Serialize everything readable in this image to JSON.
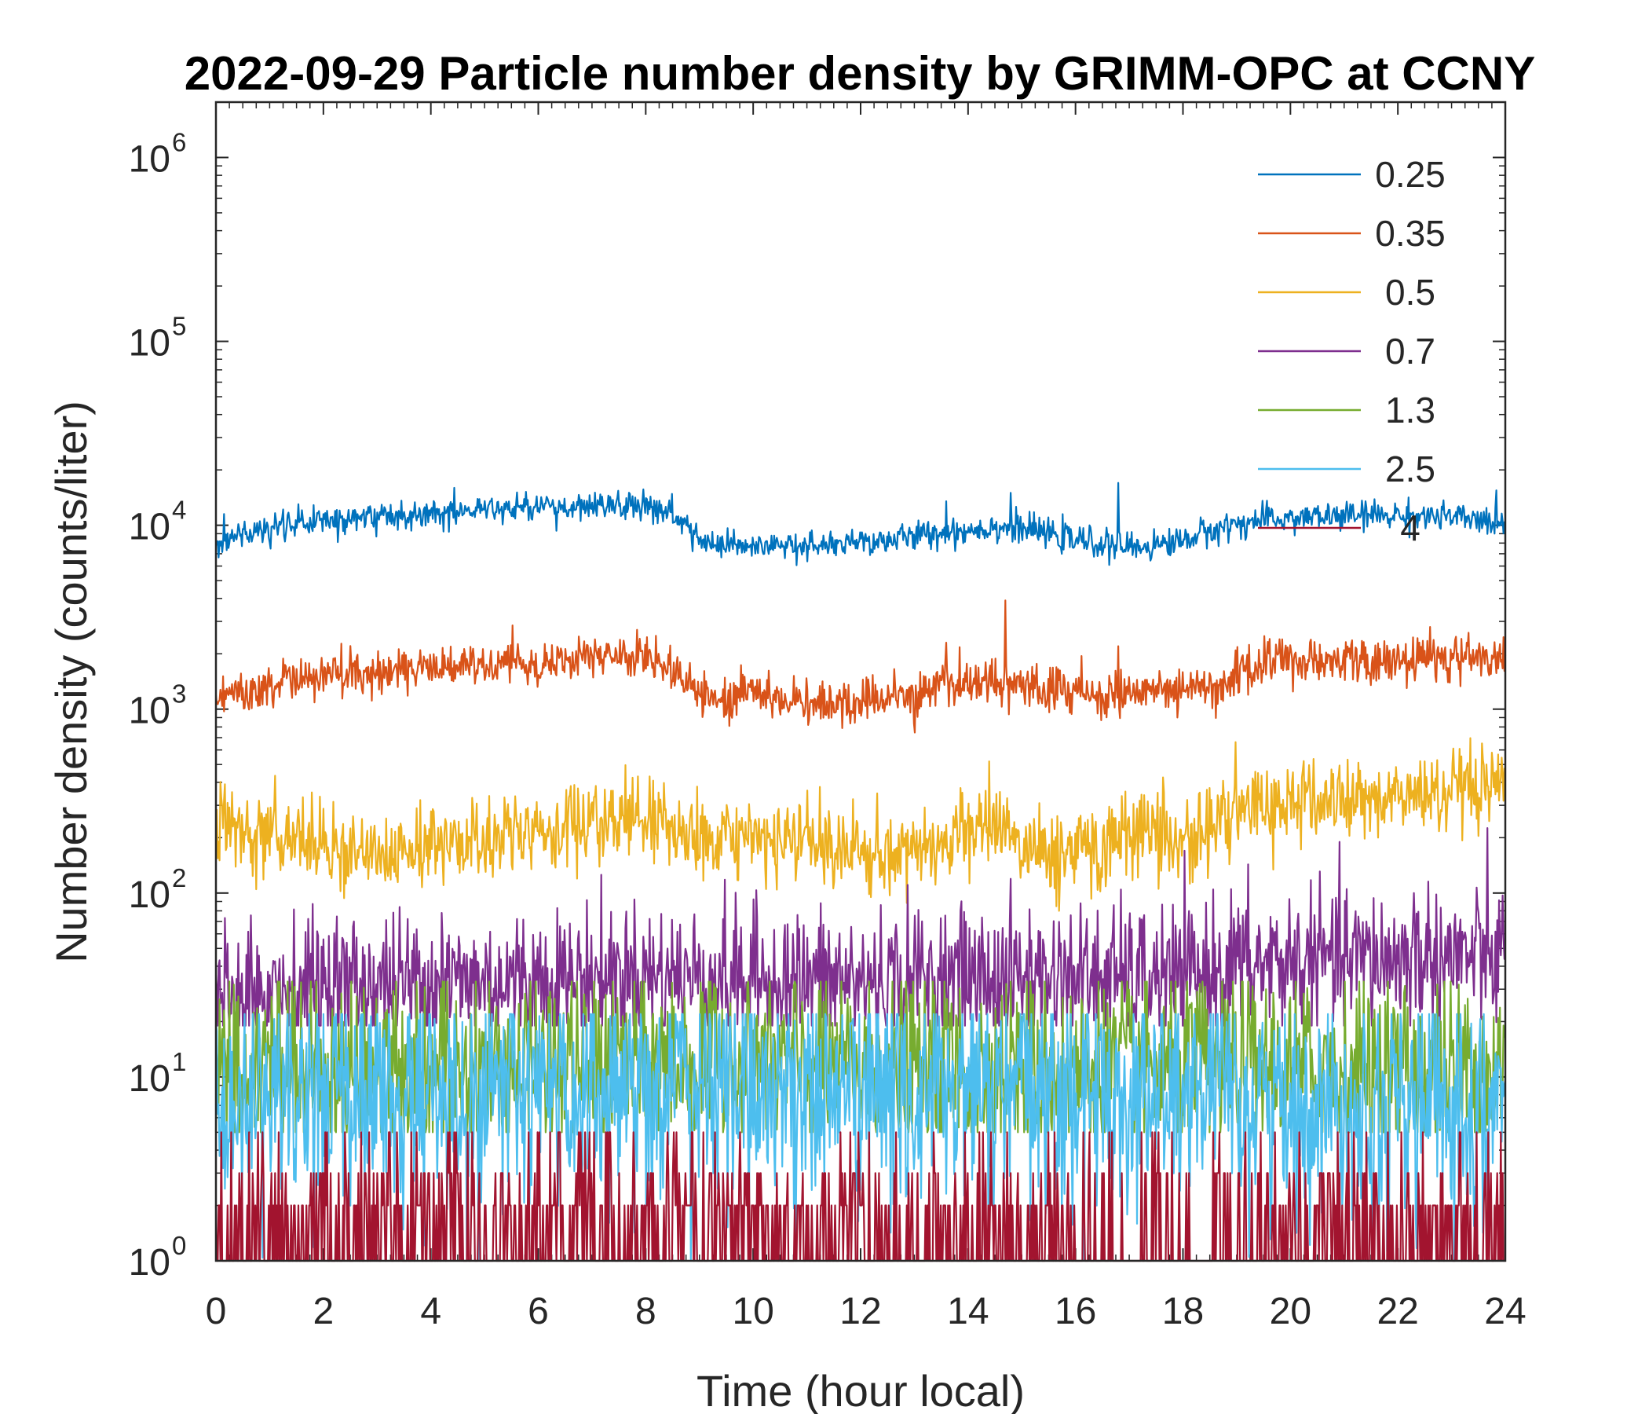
{
  "chart_data": {
    "type": "line",
    "title": "2022-09-29 Particle number density by GRIMM-OPC at CCNY",
    "xlabel": "Time (hour local)",
    "ylabel": "Number density (counts/liter)",
    "xlim": [
      0,
      24
    ],
    "ylim": [
      1,
      2000000
    ],
    "yscale": "log",
    "xticks": [
      "0",
      "2",
      "4",
      "6",
      "8",
      "10",
      "12",
      "14",
      "16",
      "18",
      "20",
      "22",
      "24"
    ],
    "yticks": [
      {
        "base": "10",
        "exp": "0",
        "value": 1
      },
      {
        "base": "10",
        "exp": "1",
        "value": 10
      },
      {
        "base": "10",
        "exp": "2",
        "value": 100
      },
      {
        "base": "10",
        "exp": "3",
        "value": 1000
      },
      {
        "base": "10",
        "exp": "4",
        "value": 10000
      },
      {
        "base": "10",
        "exp": "5",
        "value": 100000
      },
      {
        "base": "10",
        "exp": "6",
        "value": 1000000
      }
    ],
    "legend_position": "top-right",
    "series": [
      {
        "name": "0.25",
        "color": "#0072BD",
        "x": [
          0,
          0.5,
          1,
          1.5,
          2,
          2.5,
          3,
          3.5,
          4,
          4.5,
          5,
          5.5,
          6,
          6.5,
          7,
          7.5,
          8,
          8.5,
          9,
          9.5,
          10,
          10.5,
          11,
          11.5,
          12,
          12.5,
          13,
          13.5,
          14,
          14.5,
          15,
          15.5,
          16,
          16.5,
          17,
          17.5,
          18,
          18.5,
          19,
          19.5,
          20,
          20.5,
          21,
          21.5,
          22,
          22.5,
          23,
          23.5,
          24
        ],
        "values": [
          8200,
          8900,
          9500,
          10100,
          10600,
          11000,
          11300,
          11500,
          11700,
          12000,
          12200,
          12300,
          12400,
          12400,
          12500,
          12600,
          12800,
          11500,
          8200,
          7600,
          7500,
          7700,
          7600,
          7800,
          8000,
          8300,
          8700,
          9100,
          9400,
          9800,
          9600,
          9000,
          8300,
          7900,
          7600,
          7800,
          8300,
          9300,
          10200,
          10600,
          10900,
          11100,
          11200,
          11300,
          11300,
          11200,
          11000,
          10600,
          10500
        ],
        "noise": 0.09,
        "spikes": [
          [
            0.15,
            11500
          ],
          [
            7.3,
            14500
          ],
          [
            13.6,
            13500
          ],
          [
            14.8,
            15000
          ],
          [
            16.8,
            17000
          ],
          [
            21.4,
            13500
          ]
        ]
      },
      {
        "name": "0.35",
        "color": "#D95319",
        "x": [
          0,
          0.5,
          1,
          1.5,
          2,
          2.5,
          3,
          3.5,
          4,
          4.5,
          5,
          5.5,
          6,
          6.5,
          7,
          7.5,
          8,
          8.5,
          9,
          9.5,
          10,
          10.5,
          11,
          11.5,
          12,
          12.5,
          13,
          13.5,
          14,
          14.5,
          15,
          15.5,
          16,
          16.5,
          17,
          17.5,
          18,
          18.5,
          19,
          19.5,
          20,
          20.5,
          21,
          21.5,
          22,
          22.5,
          23,
          23.5,
          24
        ],
        "values": [
          1150,
          1250,
          1350,
          1420,
          1480,
          1540,
          1600,
          1650,
          1680,
          1720,
          1740,
          1760,
          1780,
          1800,
          1850,
          1900,
          1950,
          1700,
          1200,
          1150,
          1250,
          1150,
          1050,
          1050,
          1100,
          1150,
          1200,
          1300,
          1400,
          1450,
          1350,
          1300,
          1250,
          1200,
          1250,
          1300,
          1200,
          1350,
          1600,
          1750,
          1800,
          1850,
          1850,
          1800,
          1800,
          1850,
          1900,
          1900,
          1850
        ],
        "noise": 0.14,
        "spikes": [
          [
            13.6,
            2300
          ],
          [
            14.7,
            3900
          ],
          [
            16.8,
            2200
          ],
          [
            22.6,
            2800
          ],
          [
            19.8,
            2400
          ],
          [
            17.9,
            900
          ]
        ]
      },
      {
        "name": "0.5",
        "color": "#EDB120",
        "x": [
          0,
          0.5,
          1,
          1.5,
          2,
          2.5,
          3,
          3.5,
          4,
          4.5,
          5,
          5.5,
          6,
          6.5,
          7,
          7.5,
          8,
          8.5,
          9,
          9.5,
          10,
          10.5,
          11,
          11.5,
          12,
          12.5,
          13,
          13.5,
          14,
          14.5,
          15,
          15.5,
          16,
          16.5,
          17,
          17.5,
          18,
          18.5,
          19,
          19.5,
          20,
          20.5,
          21,
          21.5,
          22,
          22.5,
          23,
          23.5,
          24
        ],
        "values": [
          240,
          215,
          200,
          190,
          185,
          180,
          175,
          175,
          180,
          185,
          190,
          200,
          210,
          220,
          235,
          245,
          250,
          230,
          185,
          180,
          200,
          190,
          180,
          170,
          165,
          170,
          175,
          190,
          210,
          230,
          190,
          165,
          165,
          190,
          215,
          230,
          185,
          230,
          275,
          300,
          310,
          315,
          320,
          320,
          330,
          340,
          340,
          345,
          360
        ],
        "noise": 0.26,
        "spikes": [
          [
            14.4,
            520
          ],
          [
            15.7,
            80
          ],
          [
            22.5,
            520
          ],
          [
            12.2,
            95
          ],
          [
            23.8,
            450
          ]
        ]
      },
      {
        "name": "0.7",
        "color": "#7E2F8E",
        "x": [
          0,
          1,
          2,
          3,
          4,
          5,
          6,
          7,
          8,
          9,
          10,
          11,
          12,
          13,
          14,
          15,
          16,
          17,
          18,
          19,
          20,
          21,
          22,
          23,
          24
        ],
        "values": [
          30,
          31,
          32,
          32,
          33,
          33,
          34,
          35,
          36,
          35,
          34,
          33,
          33,
          34,
          35,
          35,
          35,
          34,
          34,
          40,
          42,
          43,
          44,
          45,
          45
        ],
        "noise": 0.45,
        "floor": 19,
        "spikes": [
          [
            18.9,
            105
          ],
          [
            22.3,
            100
          ],
          [
            4.2,
            78
          ]
        ]
      },
      {
        "name": "1.3",
        "color": "#77AC30",
        "x": [
          0,
          2,
          4,
          6,
          8,
          10,
          12,
          14,
          16,
          18,
          20,
          22,
          24
        ],
        "values": [
          12,
          11,
          11,
          11,
          12,
          12,
          11,
          11,
          11,
          11,
          11,
          11,
          11
        ],
        "noise": 0.6,
        "floor": 5,
        "ceil": 33
      },
      {
        "name": "2.5",
        "color": "#4DBEEE",
        "x": [
          0,
          2,
          4,
          6,
          8,
          10,
          12,
          14,
          16,
          18,
          20,
          22,
          24
        ],
        "values": [
          8,
          8,
          8,
          8,
          9,
          9,
          8,
          8,
          8,
          8,
          7,
          7,
          7
        ],
        "noise": 0.75,
        "floor": 1,
        "ceil": 22
      },
      {
        "name": "4",
        "color": "#A2142F",
        "x": [
          0,
          24
        ],
        "values": [
          1.4,
          1.4
        ],
        "noise": 0,
        "discrete": [
          1,
          2,
          3,
          5
        ],
        "floor": 1
      }
    ]
  }
}
